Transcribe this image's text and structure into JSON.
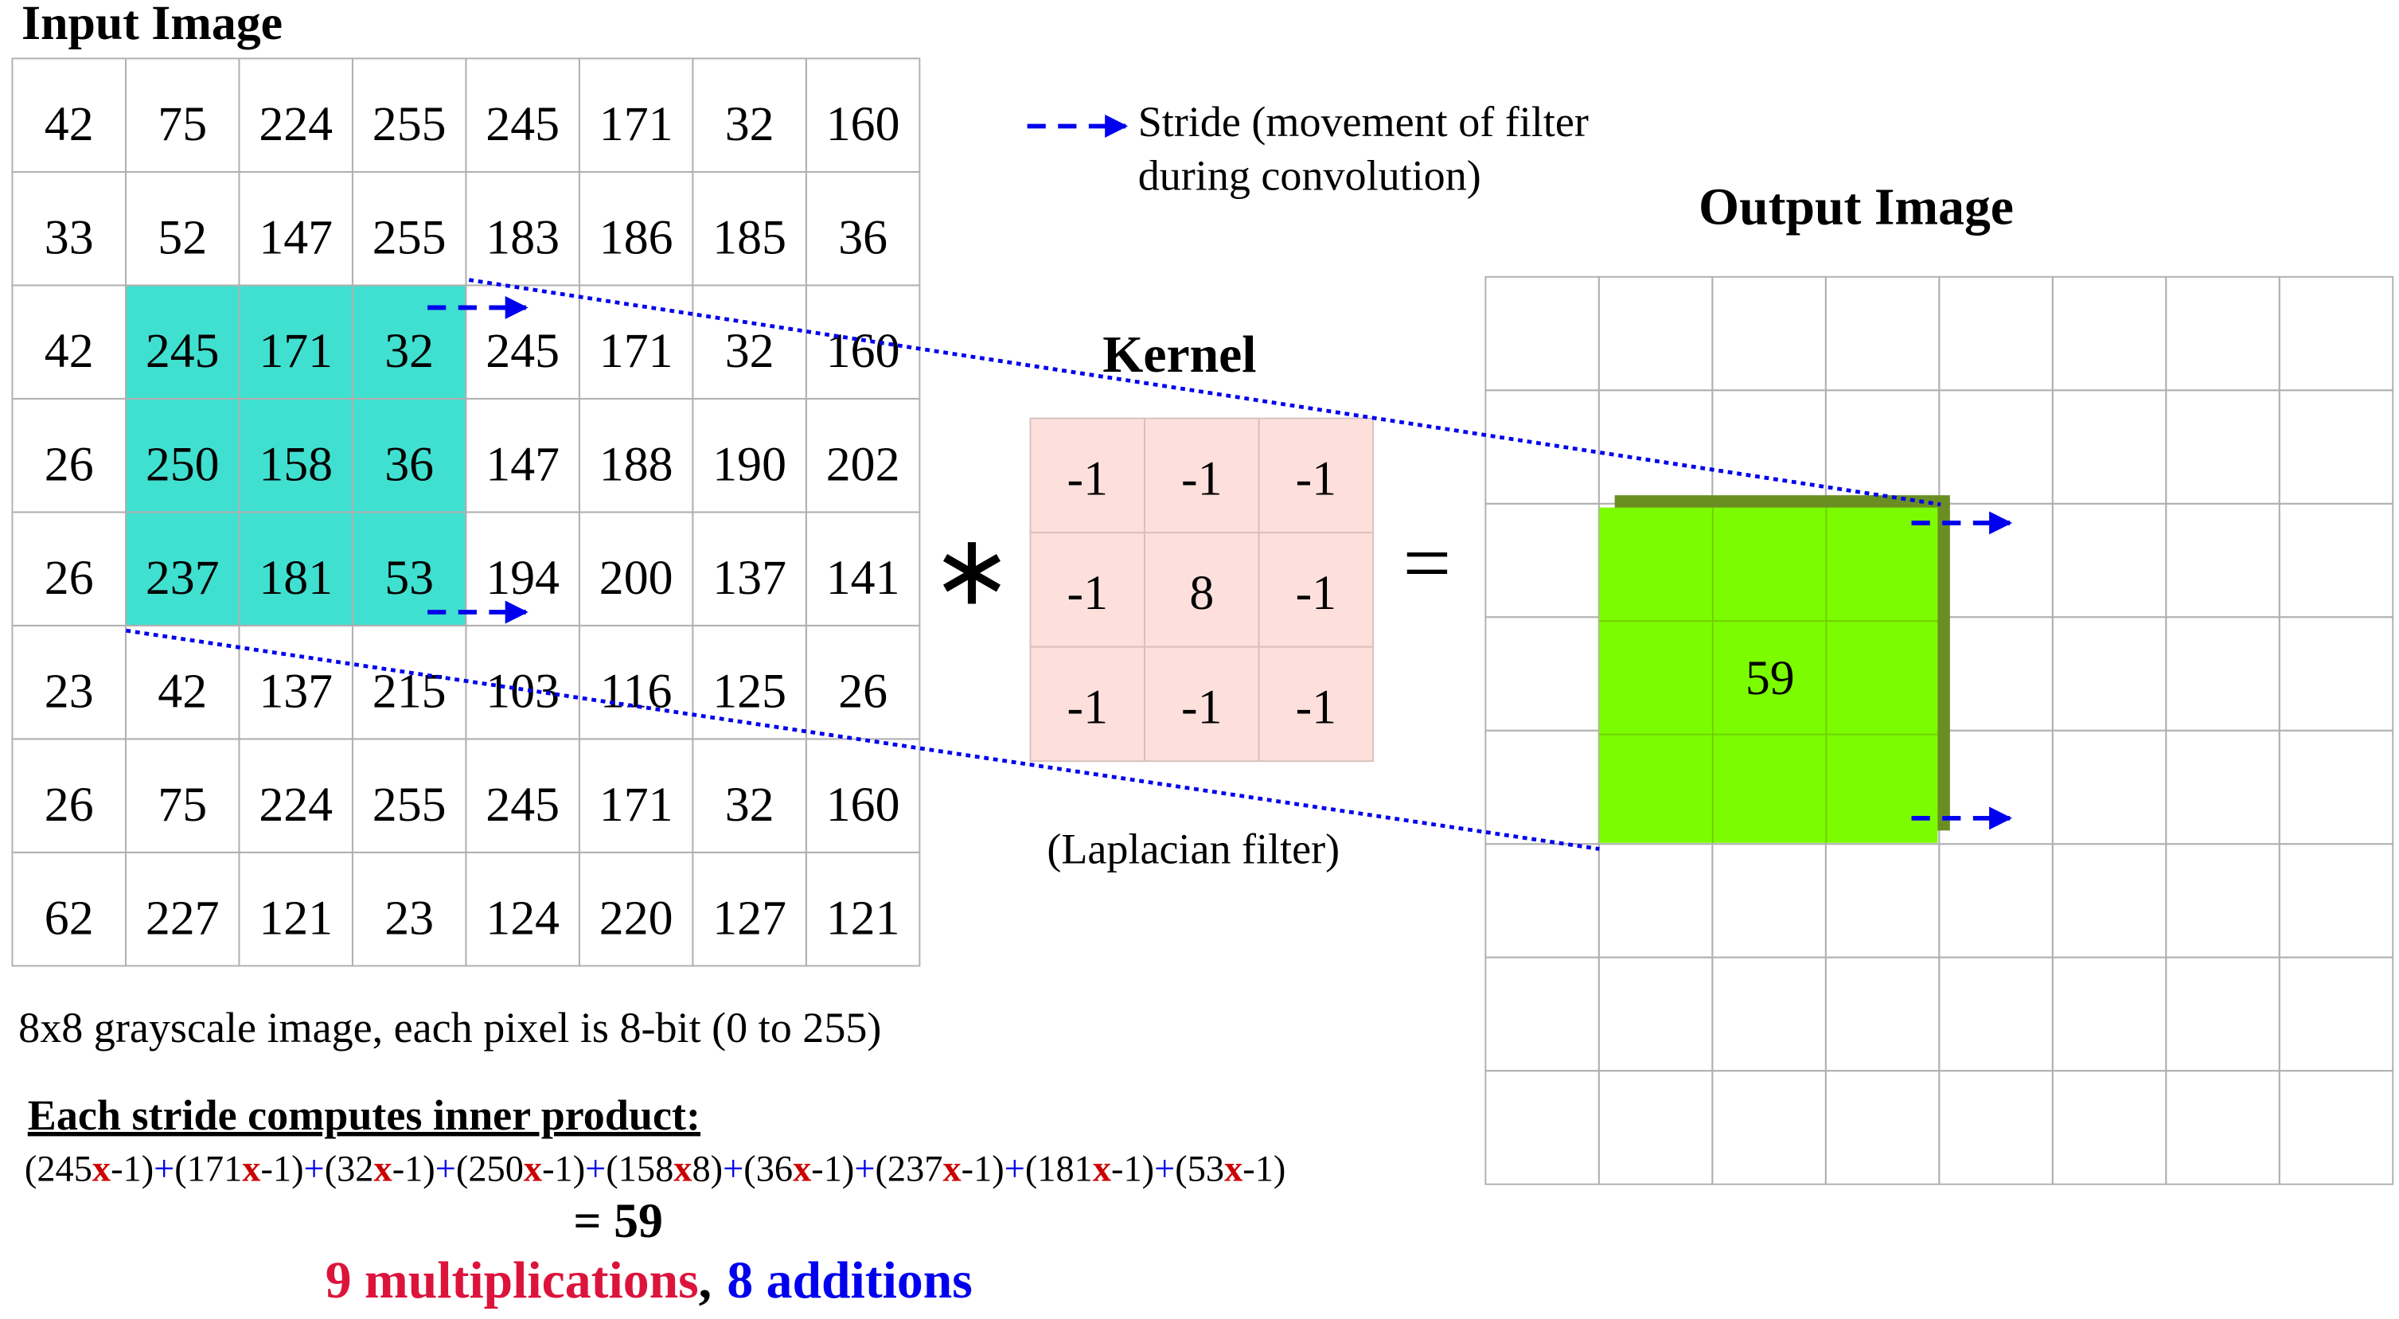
{
  "input": {
    "title": "Input Image",
    "rows": [
      [
        42,
        75,
        224,
        255,
        245,
        171,
        32,
        160
      ],
      [
        33,
        52,
        147,
        255,
        183,
        186,
        185,
        36
      ],
      [
        42,
        245,
        171,
        32,
        245,
        171,
        32,
        160
      ],
      [
        26,
        250,
        158,
        36,
        147,
        188,
        190,
        202
      ],
      [
        26,
        237,
        181,
        53,
        194,
        200,
        137,
        141
      ],
      [
        23,
        42,
        137,
        215,
        103,
        116,
        125,
        26
      ],
      [
        26,
        75,
        224,
        255,
        245,
        171,
        32,
        160
      ],
      [
        62,
        227,
        121,
        23,
        124,
        220,
        127,
        121
      ]
    ],
    "caption": "8x8 grayscale image, each pixel is 8-bit (0 to 255)"
  },
  "legend": {
    "lines": [
      "Stride (movement of filter",
      "during convolution)"
    ]
  },
  "kernel": {
    "title": "Kernel",
    "rows": [
      [
        -1,
        -1,
        -1
      ],
      [
        -1,
        8,
        -1
      ],
      [
        -1,
        -1,
        -1
      ]
    ],
    "caption": "(Laplacian filter)"
  },
  "operators": {
    "convolve": "∗",
    "equals": "="
  },
  "output": {
    "title": "Output Image",
    "value": 59
  },
  "formula": {
    "heading": "Each stride computes inner product:",
    "terms": [
      {
        "left": "(245",
        "op": "x",
        "right": "-1)"
      },
      {
        "left": "(171",
        "op": "x",
        "right": "-1)"
      },
      {
        "left": "(32",
        "op": "x",
        "right": "-1)"
      },
      {
        "left": "(250",
        "op": "x",
        "right": "-1)"
      },
      {
        "left": "(158",
        "op": "x",
        "right": "8)"
      },
      {
        "left": "(36",
        "op": "x",
        "right": "-1)"
      },
      {
        "left": "(237",
        "op": "x",
        "right": "-1)"
      },
      {
        "left": "(181",
        "op": "x",
        "right": "-1)"
      },
      {
        "left": "(53",
        "op": "x",
        "right": "-1)"
      }
    ],
    "plus": "+",
    "result": "= 59",
    "summary": {
      "multiplications": "9 multiplications",
      "separator": ",",
      "additions": "8 additions"
    }
  }
}
